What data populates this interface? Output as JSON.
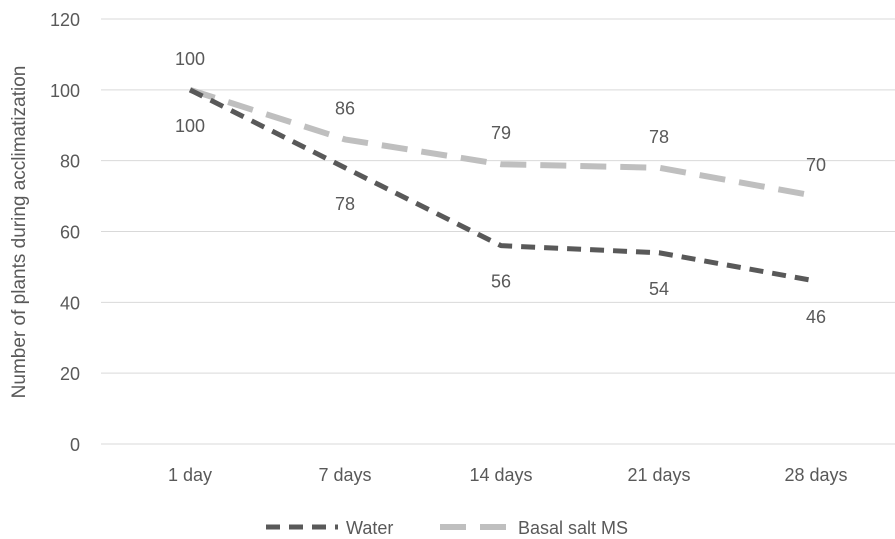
{
  "chart_data": {
    "type": "line",
    "title": "",
    "xlabel": "",
    "ylabel": "Number of plants during acclimatization",
    "categories": [
      "1 day",
      "7 days",
      "14 days",
      "21 days",
      "28 days"
    ],
    "ylim": [
      0,
      120
    ],
    "yticks": [
      0,
      20,
      40,
      60,
      80,
      100,
      120
    ],
    "grid": true,
    "legend_position": "bottom",
    "series": [
      {
        "name": "Water",
        "values": [
          100,
          78,
          56,
          54,
          46
        ],
        "color": "#595959",
        "dash": "dashed",
        "label_position": "below"
      },
      {
        "name": "Basal salt MS",
        "values": [
          100,
          86,
          79,
          78,
          70
        ],
        "color": "#bfbfbf",
        "dash": "long-dashed",
        "label_position": "above"
      }
    ]
  }
}
